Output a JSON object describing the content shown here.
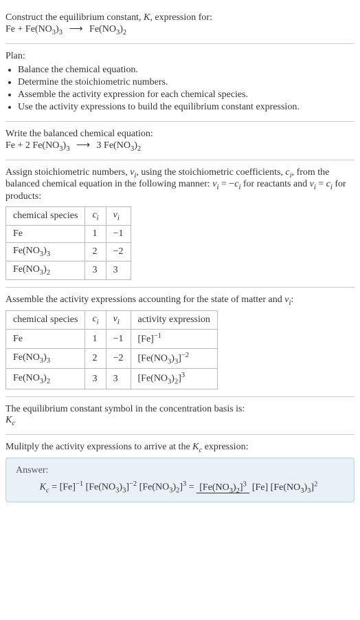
{
  "header": {
    "line1_pre": "Construct the equilibrium constant, ",
    "K": "K",
    "line1_post": ", expression for:",
    "eq_lhs_a": "Fe",
    "eq_plus": " + ",
    "eq_lhs_b": "Fe(NO",
    "eq_lhs_b_sub1": "3",
    "eq_lhs_b_mid": ")",
    "eq_lhs_b_sub2": "3",
    "arrow": "⟶",
    "eq_rhs": "Fe(NO",
    "eq_rhs_sub1": "3",
    "eq_rhs_mid": ")",
    "eq_rhs_sub2": "2"
  },
  "plan": {
    "title": "Plan:",
    "items": [
      "Balance the chemical equation.",
      "Determine the stoichiometric numbers.",
      "Assemble the activity expression for each chemical species.",
      "Use the activity expressions to build the equilibrium constant expression."
    ]
  },
  "balanced": {
    "title": "Write the balanced chemical equation:",
    "c1": "Fe",
    "plus1": " + 2 ",
    "c2": "Fe(NO",
    "c2s1": "3",
    "c2m": ")",
    "c2s2": "3",
    "arrow": "⟶",
    "c3pre": " 3 ",
    "c3": "Fe(NO",
    "c3s1": "3",
    "c3m": ")",
    "c3s2": "2"
  },
  "assign": {
    "text_a": "Assign stoichiometric numbers, ",
    "nu": "ν",
    "nu_sub": "i",
    "text_b": ", using the stoichiometric coefficients, ",
    "c": "c",
    "c_sub": "i",
    "text_c": ", from the balanced chemical equation in the following manner: ",
    "rel1_l": "ν",
    "rel1_ls": "i",
    "rel1_eq": " = −",
    "rel1_r": "c",
    "rel1_rs": "i",
    "text_d": " for reactants and ",
    "rel2_l": "ν",
    "rel2_ls": "i",
    "rel2_eq": " = ",
    "rel2_r": "c",
    "rel2_rs": "i",
    "text_e": " for products:"
  },
  "table1": {
    "h1": "chemical species",
    "h2_a": "c",
    "h2_b": "i",
    "h3_a": "ν",
    "h3_b": "i",
    "rows": [
      {
        "sp": "Fe",
        "s1": "",
        "mid": "",
        "s2": "",
        "c": "1",
        "nu": "−1"
      },
      {
        "sp": "Fe(NO",
        "s1": "3",
        "mid": ")",
        "s2": "3",
        "c": "2",
        "nu": "−2"
      },
      {
        "sp": "Fe(NO",
        "s1": "3",
        "mid": ")",
        "s2": "2",
        "c": "3",
        "nu": "3"
      }
    ]
  },
  "assemble": {
    "text_a": "Assemble the activity expressions accounting for the state of matter and ",
    "nu": "ν",
    "nu_sub": "i",
    "colon": ":"
  },
  "table2": {
    "h1": "chemical species",
    "h2_a": "c",
    "h2_b": "i",
    "h3_a": "ν",
    "h3_b": "i",
    "h4": "activity expression",
    "rows": [
      {
        "sp": "Fe",
        "s1": "",
        "mid": "",
        "s2": "",
        "c": "1",
        "nu": "−1",
        "ax_pre": "[Fe]",
        "ax_s1": "",
        "ax_mid": "",
        "ax_s2": "",
        "ax_exp": "−1"
      },
      {
        "sp": "Fe(NO",
        "s1": "3",
        "mid": ")",
        "s2": "3",
        "c": "2",
        "nu": "−2",
        "ax_pre": "[Fe(NO",
        "ax_s1": "3",
        "ax_mid": ")",
        "ax_s2": "3",
        "ax_post": "]",
        "ax_exp": "−2"
      },
      {
        "sp": "Fe(NO",
        "s1": "3",
        "mid": ")",
        "s2": "2",
        "c": "3",
        "nu": "3",
        "ax_pre": "[Fe(NO",
        "ax_s1": "3",
        "ax_mid": ")",
        "ax_s2": "2",
        "ax_post": "]",
        "ax_exp": "3"
      }
    ]
  },
  "symbol": {
    "text": "The equilibrium constant symbol in the concentration basis is:",
    "K": "K",
    "Ksub": "c"
  },
  "multiply": {
    "text_a": "Mulitply the activity expressions to arrive at the ",
    "K": "K",
    "Ksub": "c",
    "text_b": " expression:"
  },
  "answer": {
    "label": "Answer:",
    "Kc_K": "K",
    "Kc_sub": "c",
    "eq": " = ",
    "t1": "[Fe]",
    "t1_exp": "−1",
    "t2_pre": " [Fe(NO",
    "t2_s1": "3",
    "t2_mid": ")",
    "t2_s2": "3",
    "t2_post": "]",
    "t2_exp": "−2",
    "t3_pre": " [Fe(NO",
    "t3_s1": "3",
    "t3_mid": ")",
    "t3_s2": "2",
    "t3_post": "]",
    "t3_exp": "3",
    "eq2": " = ",
    "num_pre": "[Fe(NO",
    "num_s1": "3",
    "num_mid": ")",
    "num_s2": "2",
    "num_post": "]",
    "num_exp": "3",
    "den_a": "[Fe] ",
    "den_pre": "[Fe(NO",
    "den_s1": "3",
    "den_mid": ")",
    "den_s2": "3",
    "den_post": "]",
    "den_exp": "2"
  },
  "colors": {
    "answer_bg": "#e8f0f8",
    "answer_border": "#b8d0e8",
    "divider": "#cccccc",
    "table_border": "#bbbbbb"
  }
}
